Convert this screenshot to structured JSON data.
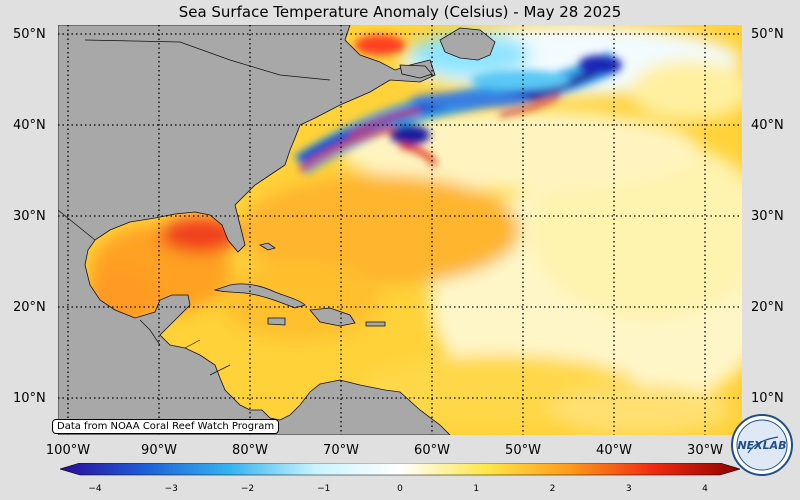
{
  "title": "Sea Surface Temperature Anomaly (Celsius) - May 28 2025",
  "credit": "Data from NOAA Coral Reef Watch Program",
  "lat_labels": [
    "50°N",
    "40°N",
    "30°N",
    "20°N",
    "10°N"
  ],
  "lon_labels": [
    "100°W",
    "90°W",
    "80°W",
    "70°W",
    "60°W",
    "50°W",
    "40°W",
    "30°W"
  ],
  "colorbar": {
    "ticks": [
      "−4",
      "−3",
      "−2",
      "−1",
      "0",
      "1",
      "2",
      "3",
      "4"
    ],
    "colors": [
      "#2a0a9a",
      "#1e5fd8",
      "#35b4f0",
      "#c8f4ff",
      "#ffffff",
      "#ffe84a",
      "#ff9a1a",
      "#ee2a10",
      "#8e0000"
    ]
  },
  "logo": {
    "text": "NEXLAB"
  },
  "colors": {
    "land": "#a8a8a8",
    "background": "#e0e0e0",
    "ocean_warm": "#ffcc33"
  }
}
